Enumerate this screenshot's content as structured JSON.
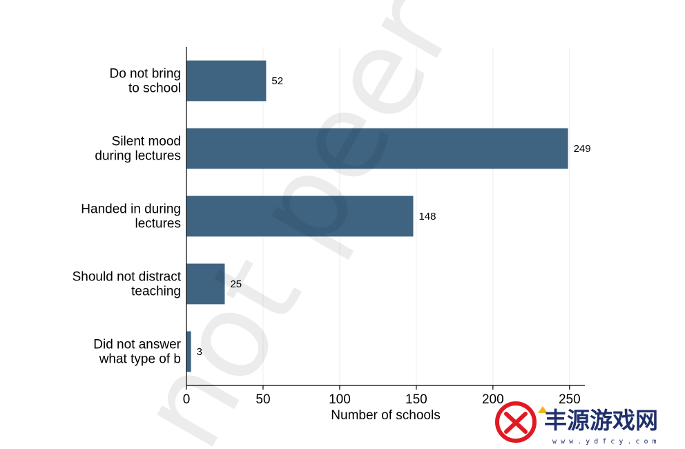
{
  "chart_data": {
    "type": "bar",
    "orientation": "horizontal",
    "categories": [
      [
        "Do not bring",
        "to school"
      ],
      [
        "Silent mood",
        "during lectures"
      ],
      [
        "Handed in during",
        "lectures"
      ],
      [
        "Should not distract",
        "teaching"
      ],
      [
        "Did not answer",
        "what type of b"
      ]
    ],
    "values": [
      52,
      249,
      148,
      25,
      3
    ],
    "xlabel": "Number of schools",
    "ylabel": "",
    "xlim": [
      0,
      260
    ],
    "xticks": [
      0,
      50,
      100,
      150,
      200,
      250
    ],
    "bar_color": "#3e6482",
    "grid": true,
    "grid_color": "#ededed",
    "data_labels": true
  },
  "watermark": {
    "text": "not peer re"
  },
  "logo": {
    "text": "丰源游戏网",
    "subtext": "w w w . y d f c y . c o m",
    "colors": [
      "#e01a22",
      "#1f2f6b",
      "#f2b31a"
    ]
  }
}
